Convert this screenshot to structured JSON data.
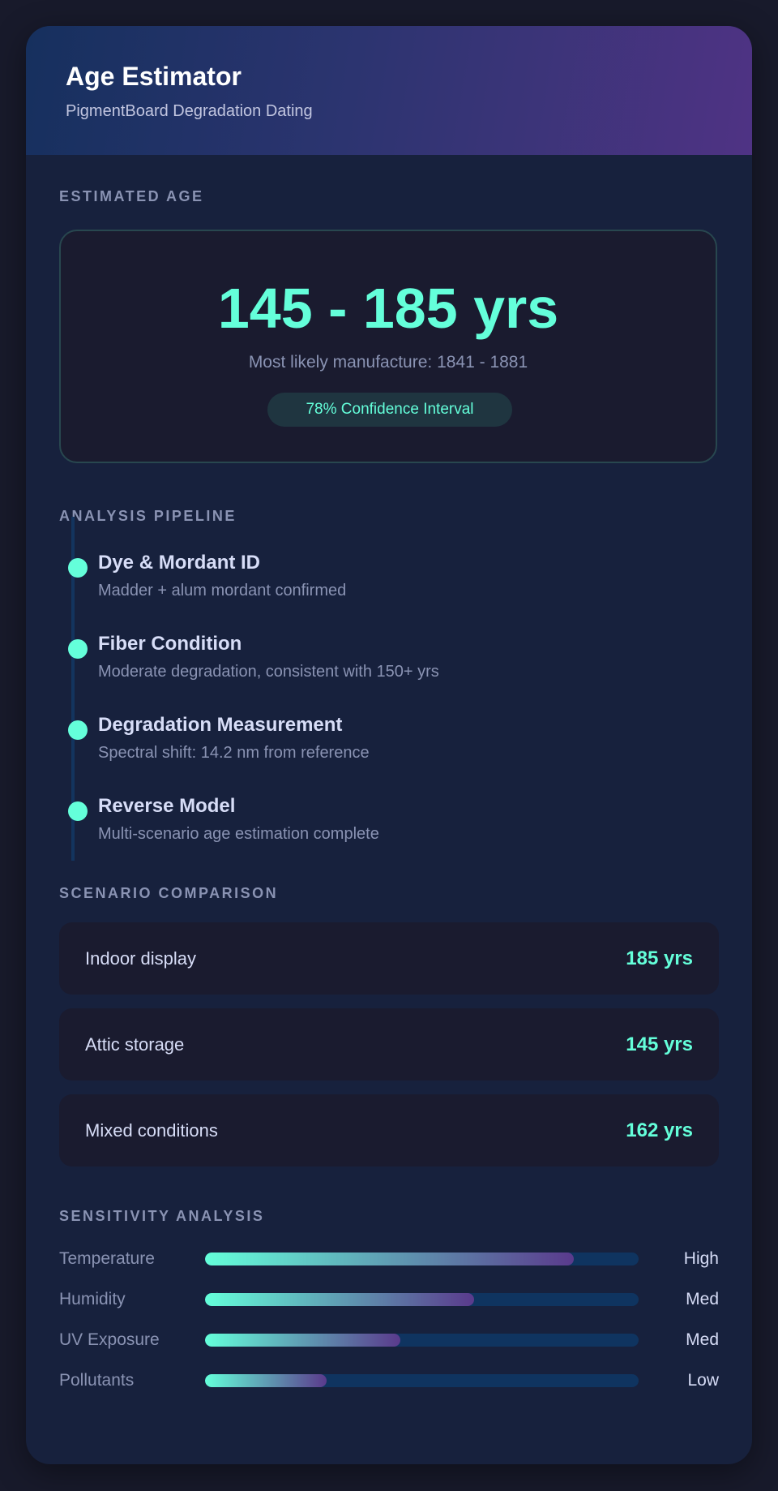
{
  "header": {
    "title": "Age Estimator",
    "subtitle": "PigmentBoard Degradation Dating"
  },
  "estimate": {
    "section_label": "ESTIMATED AGE",
    "range": "145 - 185 yrs",
    "manufacture": "Most likely manufacture: 1841 - 1881",
    "confidence": "78% Confidence Interval"
  },
  "pipeline": {
    "section_label": "ANALYSIS PIPELINE",
    "steps": [
      {
        "title": "Dye & Mordant ID",
        "desc": "Madder + alum mordant confirmed"
      },
      {
        "title": "Fiber Condition",
        "desc": "Moderate degradation, consistent with 150+ yrs"
      },
      {
        "title": "Degradation Measurement",
        "desc": "Spectral shift: 14.2 nm from reference"
      },
      {
        "title": "Reverse Model",
        "desc": "Multi-scenario age estimation complete"
      }
    ]
  },
  "scenarios": {
    "section_label": "SCENARIO COMPARISON",
    "items": [
      {
        "label": "Indoor display",
        "value": "185 yrs"
      },
      {
        "label": "Attic storage",
        "value": "145 yrs"
      },
      {
        "label": "Mixed conditions",
        "value": "162 yrs"
      }
    ]
  },
  "sensitivity": {
    "section_label": "SENSITIVITY ANALYSIS",
    "items": [
      {
        "label": "Temperature",
        "level": "High",
        "fill": 0.85
      },
      {
        "label": "Humidity",
        "level": "Med",
        "fill": 0.62
      },
      {
        "label": "UV Exposure",
        "level": "Med",
        "fill": 0.45
      },
      {
        "label": "Pollutants",
        "level": "Low",
        "fill": 0.28
      }
    ]
  },
  "colors": {
    "accent": "#64ffda",
    "background": "#181a2b",
    "card": "#17213d",
    "track": "#0f3460"
  }
}
